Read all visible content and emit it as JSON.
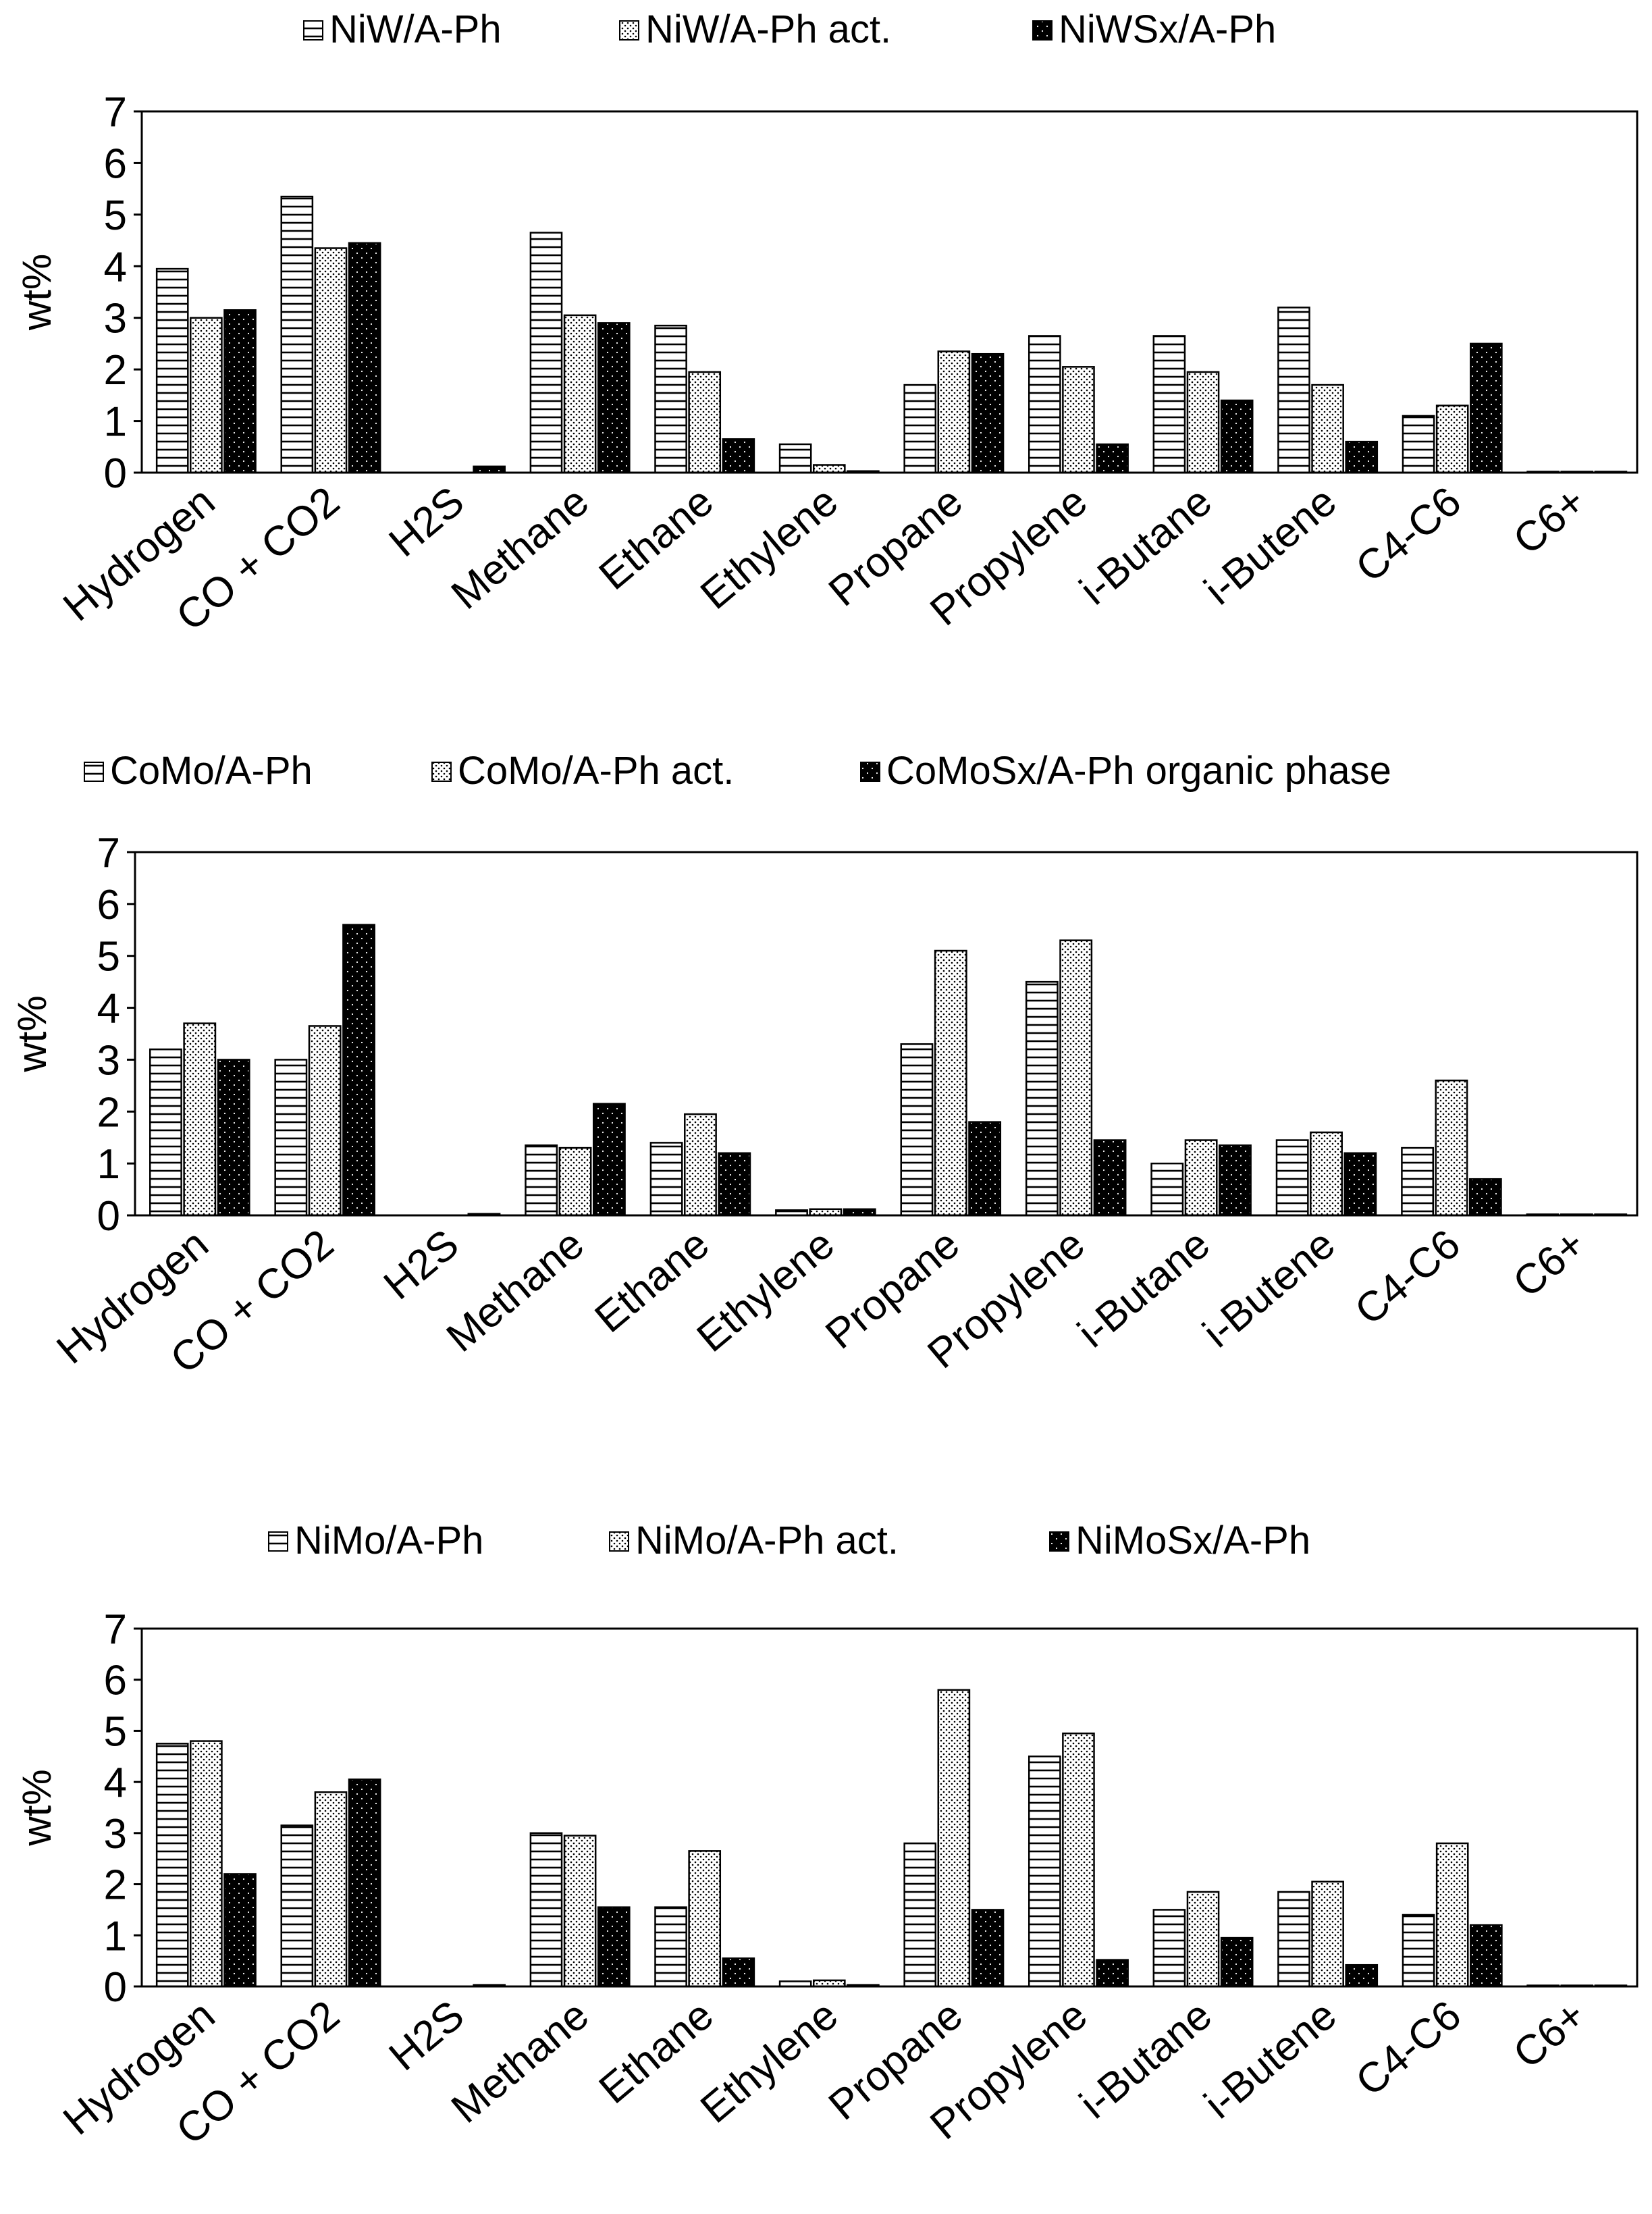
{
  "colors": {
    "axis": "#000000",
    "bar_outline": "#000000",
    "background": "#ffffff"
  },
  "chart_data": [
    {
      "type": "bar",
      "ylabel": "wt%",
      "ylim": [
        0,
        7
      ],
      "yticks": [
        0,
        1,
        2,
        3,
        4,
        5,
        6,
        7
      ],
      "legend_position": "top",
      "categories": [
        "Hydrogen",
        "CO + CO2",
        "H2S",
        "Methane",
        "Ethane",
        "Ethylene",
        "Propane",
        "Propylene",
        "i-Butane",
        "i-Butene",
        "C4-C6",
        "C6+"
      ],
      "series": [
        {
          "name": "NiW/A-Ph",
          "pattern": "hlines",
          "values": [
            3.95,
            5.35,
            0.0,
            4.65,
            2.85,
            0.55,
            1.7,
            2.65,
            2.65,
            3.2,
            1.1,
            0.02
          ]
        },
        {
          "name": "NiW/A-Ph act.",
          "pattern": "dots",
          "values": [
            3.0,
            4.35,
            0.0,
            3.05,
            1.95,
            0.15,
            2.35,
            2.05,
            1.95,
            1.7,
            1.3,
            0.02
          ]
        },
        {
          "name": "NiWSx/A-Ph",
          "pattern": "black",
          "values": [
            3.15,
            4.45,
            0.12,
            2.9,
            0.65,
            0.03,
            2.3,
            0.55,
            1.4,
            0.6,
            2.5,
            0.02
          ]
        }
      ]
    },
    {
      "type": "bar",
      "ylabel": "wt%",
      "ylim": [
        0,
        7
      ],
      "yticks": [
        0,
        1,
        2,
        3,
        4,
        5,
        6,
        7
      ],
      "legend_position": "top",
      "categories": [
        "Hydrogen",
        "CO + CO2",
        "H2S",
        "Methane",
        "Ethane",
        "Ethylene",
        "Propane",
        "Propylene",
        "i-Butane",
        "i-Butene",
        "C4-C6",
        "C6+"
      ],
      "series": [
        {
          "name": "CoMo/A-Ph",
          "pattern": "hlines",
          "values": [
            3.2,
            3.0,
            0.0,
            1.35,
            1.4,
            0.1,
            3.3,
            4.5,
            1.0,
            1.45,
            1.3,
            0.02
          ]
        },
        {
          "name": "CoMo/A-Ph act.",
          "pattern": "dots",
          "values": [
            3.7,
            3.65,
            0.0,
            1.3,
            1.95,
            0.12,
            5.1,
            5.3,
            1.45,
            1.6,
            2.6,
            0.02
          ]
        },
        {
          "name": "CoMoSx/A-Ph organic phase",
          "pattern": "black",
          "values": [
            3.0,
            5.6,
            0.03,
            2.15,
            1.2,
            0.12,
            1.8,
            1.45,
            1.35,
            1.2,
            0.7,
            0.02
          ]
        }
      ]
    },
    {
      "type": "bar",
      "ylabel": "wt%",
      "ylim": [
        0,
        7
      ],
      "yticks": [
        0,
        1,
        2,
        3,
        4,
        5,
        6,
        7
      ],
      "legend_position": "top",
      "categories": [
        "Hydrogen",
        "CO + CO2",
        "H2S",
        "Methane",
        "Ethane",
        "Ethylene",
        "Propane",
        "Propylene",
        "i-Butane",
        "i-Butene",
        "C4-C6",
        "C6+"
      ],
      "series": [
        {
          "name": "NiMo/A-Ph",
          "pattern": "hlines",
          "values": [
            4.75,
            3.15,
            0.0,
            3.0,
            1.55,
            0.1,
            2.8,
            4.5,
            1.5,
            1.85,
            1.4,
            0.02
          ]
        },
        {
          "name": "NiMo/A-Ph act.",
          "pattern": "dots",
          "values": [
            4.8,
            3.8,
            0.0,
            2.95,
            2.65,
            0.12,
            5.8,
            4.95,
            1.85,
            2.05,
            2.8,
            0.02
          ]
        },
        {
          "name": "NiMoSx/A-Ph",
          "pattern": "black",
          "values": [
            2.2,
            4.05,
            0.03,
            1.55,
            0.55,
            0.03,
            1.5,
            0.52,
            0.95,
            0.42,
            1.2,
            0.02
          ]
        }
      ]
    }
  ]
}
